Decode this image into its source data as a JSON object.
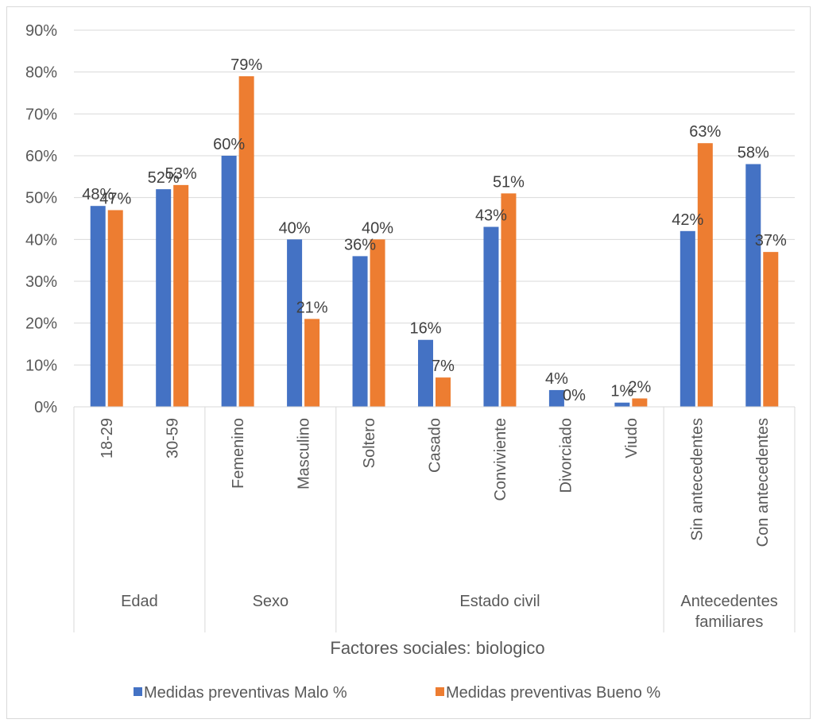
{
  "chart_data": {
    "type": "bar",
    "xlabel": "Factores sociales: biologico",
    "ylabel": "",
    "ylim": [
      0,
      90
    ],
    "y_ticks": [
      "0%",
      "10%",
      "20%",
      "30%",
      "40%",
      "50%",
      "60%",
      "70%",
      "80%",
      "90%"
    ],
    "grid": true,
    "legend_position": "bottom",
    "categories": [
      "18-29",
      "30-59",
      "Femenino",
      "Masculino",
      "Soltero",
      "Casado",
      "Conviviente",
      "Divorciado",
      "Viudo",
      "Sin antecedentes",
      "Con antecedentes"
    ],
    "groups": [
      {
        "label": "Edad",
        "count": 2
      },
      {
        "label": "Sexo",
        "count": 2
      },
      {
        "label": "Estado civil",
        "count": 5
      },
      {
        "label": "Antecedentes familiares",
        "count": 2
      }
    ],
    "series": [
      {
        "name": "Medidas preventivas Malo %",
        "color": "#4472c4",
        "values": [
          48,
          52,
          60,
          40,
          36,
          16,
          43,
          4,
          1,
          42,
          58
        ],
        "labels": [
          "48%",
          "52%",
          "60%",
          "40%",
          "36%",
          "16%",
          "43%",
          "4%",
          "1%",
          "42%",
          "58%"
        ]
      },
      {
        "name": "Medidas preventivas Bueno %",
        "color": "#ed7d31",
        "values": [
          47,
          53,
          79,
          21,
          40,
          7,
          51,
          0,
          2,
          63,
          37
        ],
        "labels": [
          "47%",
          "53%",
          "79%",
          "21%",
          "40%",
          "7%",
          "51%",
          "0%",
          "2%",
          "63%",
          "37%"
        ]
      }
    ]
  }
}
